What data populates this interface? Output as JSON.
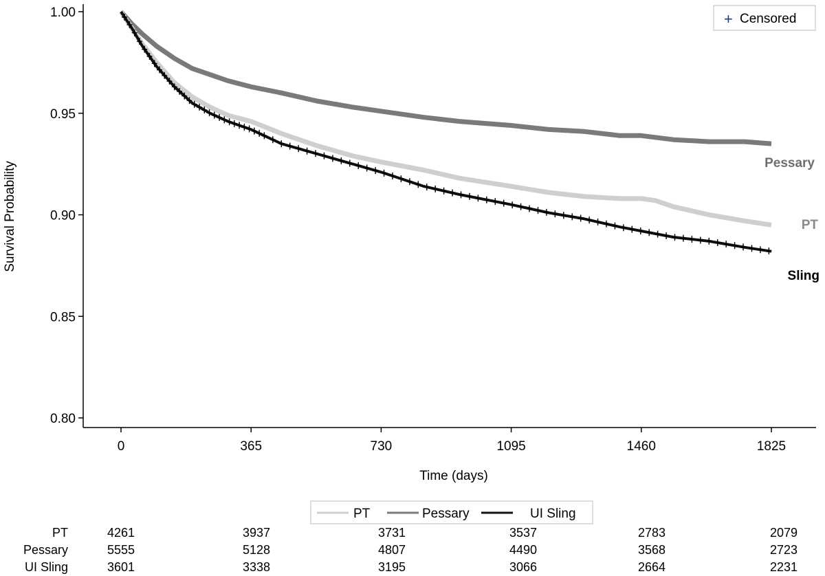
{
  "chart_data": {
    "type": "line",
    "xlabel": "Time (days)",
    "ylabel": "Survival Probability",
    "xlim": [
      -75,
      1900
    ],
    "ylim": [
      0.795,
      1.005
    ],
    "x_ticks": [
      "0",
      "365",
      "730",
      "1095",
      "1460",
      "1825"
    ],
    "y_ticks": [
      "0.80",
      "0.85",
      "0.90",
      "0.95",
      "1.00"
    ],
    "grid": false,
    "censored_legend": {
      "label": "Censored",
      "symbol": "+",
      "color": "#1f3b8c",
      "position": "top-right"
    },
    "series": [
      {
        "name": "Pessary",
        "end_label": "Pessary",
        "color": "#7a7a7a",
        "label_color": "#6e6e6e",
        "x": [
          0,
          30,
          60,
          100,
          150,
          200,
          250,
          300,
          365,
          450,
          550,
          650,
          730,
          850,
          950,
          1095,
          1200,
          1300,
          1400,
          1460,
          1550,
          1650,
          1750,
          1825
        ],
        "y": [
          1.0,
          0.994,
          0.989,
          0.983,
          0.977,
          0.972,
          0.969,
          0.966,
          0.963,
          0.96,
          0.956,
          0.953,
          0.951,
          0.948,
          0.946,
          0.944,
          0.942,
          0.941,
          0.939,
          0.939,
          0.937,
          0.936,
          0.936,
          0.935
        ]
      },
      {
        "name": "PT",
        "end_label": "PT",
        "color": "#cfcfcf",
        "label_color": "#8a8a8a",
        "x": [
          0,
          30,
          60,
          100,
          150,
          200,
          250,
          300,
          365,
          450,
          550,
          650,
          730,
          850,
          950,
          1095,
          1200,
          1300,
          1400,
          1460,
          1500,
          1550,
          1650,
          1750,
          1825
        ],
        "y": [
          1.0,
          0.992,
          0.984,
          0.975,
          0.965,
          0.958,
          0.953,
          0.949,
          0.946,
          0.94,
          0.934,
          0.929,
          0.926,
          0.922,
          0.918,
          0.914,
          0.911,
          0.909,
          0.908,
          0.908,
          0.907,
          0.904,
          0.9,
          0.897,
          0.895
        ]
      },
      {
        "name": "UI Sling",
        "end_label": "Sling",
        "color": "#111111",
        "label_color": "#000000",
        "x": [
          0,
          30,
          60,
          100,
          150,
          200,
          250,
          300,
          365,
          450,
          550,
          650,
          730,
          850,
          950,
          1095,
          1200,
          1300,
          1400,
          1460,
          1550,
          1650,
          1750,
          1825
        ],
        "y": [
          1.0,
          0.992,
          0.983,
          0.973,
          0.963,
          0.955,
          0.95,
          0.946,
          0.942,
          0.935,
          0.93,
          0.925,
          0.921,
          0.914,
          0.91,
          0.905,
          0.901,
          0.898,
          0.894,
          0.892,
          0.889,
          0.887,
          0.884,
          0.882
        ]
      }
    ],
    "bottom_legend": [
      "PT",
      "Pessary",
      "UI Sling"
    ],
    "risk_table": {
      "times": [
        0,
        365,
        730,
        1095,
        1460,
        1825
      ],
      "rows": [
        {
          "label": "PT",
          "values": [
            "4261",
            "3937",
            "3731",
            "3537",
            "2783",
            "2079"
          ]
        },
        {
          "label": "Pessary",
          "values": [
            "5555",
            "5128",
            "4807",
            "4490",
            "3568",
            "2723"
          ]
        },
        {
          "label": "UI Sling",
          "values": [
            "3601",
            "3338",
            "3195",
            "3066",
            "2664",
            "2231"
          ]
        }
      ]
    }
  }
}
